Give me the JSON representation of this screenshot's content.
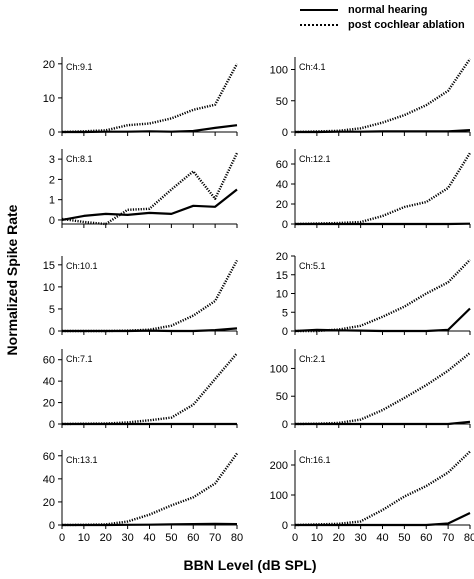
{
  "figure": {
    "xlabel": "BBN Level (dB SPL)",
    "ylabel": "Normalized Spike Rate"
  },
  "legend": {
    "placement": "top-right",
    "entries": [
      {
        "label": "normal hearing",
        "style": "solid"
      },
      {
        "label": "post cochlear ablation",
        "style": "dotted"
      }
    ]
  },
  "colors": {
    "normal": "#000000",
    "ablation": "#000000"
  },
  "chart_data": [
    {
      "type": "line",
      "title": "Ch:9.1",
      "x": [
        0,
        10,
        20,
        30,
        40,
        50,
        60,
        70,
        80
      ],
      "xlim": [
        0,
        80
      ],
      "ylim": [
        0,
        22
      ],
      "yticks": [
        0,
        10,
        20
      ],
      "xticks": [],
      "series": [
        {
          "name": "normal hearing",
          "style": "solid",
          "values": [
            0,
            0,
            0.1,
            0.1,
            0.2,
            0.1,
            0.3,
            1.2,
            2
          ]
        },
        {
          "name": "post cochlear ablation",
          "style": "dotted",
          "values": [
            0,
            0.2,
            0.5,
            2,
            2.5,
            4,
            6.5,
            8,
            20
          ]
        }
      ]
    },
    {
      "type": "line",
      "title": "Ch:4.1",
      "x": [
        0,
        10,
        20,
        30,
        40,
        50,
        60,
        70,
        80
      ],
      "xlim": [
        0,
        80
      ],
      "ylim": [
        0,
        120
      ],
      "yticks": [
        0,
        50,
        100
      ],
      "xticks": [],
      "series": [
        {
          "name": "normal hearing",
          "style": "solid",
          "values": [
            0,
            0,
            0.5,
            0.5,
            1,
            1,
            1,
            1,
            3
          ]
        },
        {
          "name": "post cochlear ablation",
          "style": "dotted",
          "values": [
            0,
            1,
            2,
            6,
            15,
            27,
            43,
            66,
            117
          ]
        }
      ]
    },
    {
      "type": "line",
      "title": "Ch:8.1",
      "x": [
        0,
        10,
        20,
        30,
        40,
        50,
        60,
        70,
        80
      ],
      "xlim": [
        0,
        80
      ],
      "ylim": [
        -0.2,
        3.5
      ],
      "yticks": [
        0,
        1,
        2,
        3
      ],
      "xticks": [],
      "series": [
        {
          "name": "normal hearing",
          "style": "solid",
          "values": [
            0,
            0.2,
            0.3,
            0.25,
            0.35,
            0.3,
            0.7,
            0.65,
            1.5
          ]
        },
        {
          "name": "post cochlear ablation",
          "style": "dotted",
          "values": [
            0.05,
            -0.1,
            -0.2,
            0.5,
            0.55,
            1.5,
            2.4,
            1.05,
            3.3
          ]
        }
      ]
    },
    {
      "type": "line",
      "title": "Ch:12.1",
      "x": [
        0,
        10,
        20,
        30,
        40,
        50,
        60,
        70,
        80
      ],
      "xlim": [
        0,
        80
      ],
      "ylim": [
        0,
        75
      ],
      "yticks": [
        0,
        20,
        40,
        60
      ],
      "xticks": [],
      "series": [
        {
          "name": "normal hearing",
          "style": "solid",
          "values": [
            0,
            0,
            0,
            0,
            0,
            0,
            0,
            0,
            0.3
          ]
        },
        {
          "name": "post cochlear ablation",
          "style": "dotted",
          "values": [
            0,
            0.5,
            1,
            2,
            8,
            17,
            22,
            36,
            71
          ]
        }
      ]
    },
    {
      "type": "line",
      "title": "Ch:10.1",
      "x": [
        0,
        10,
        20,
        30,
        40,
        50,
        60,
        70,
        80
      ],
      "xlim": [
        0,
        80
      ],
      "ylim": [
        0,
        17
      ],
      "yticks": [
        0,
        5,
        10,
        15
      ],
      "xticks": [],
      "series": [
        {
          "name": "normal hearing",
          "style": "solid",
          "values": [
            0,
            0,
            0,
            0,
            0.1,
            0,
            0,
            0.2,
            0.6
          ]
        },
        {
          "name": "post cochlear ablation",
          "style": "dotted",
          "values": [
            0,
            0,
            0,
            0.1,
            0.3,
            1.2,
            3.5,
            6.8,
            16
          ]
        }
      ]
    },
    {
      "type": "line",
      "title": "Ch:5.1",
      "x": [
        0,
        10,
        20,
        30,
        40,
        50,
        60,
        70,
        80
      ],
      "xlim": [
        0,
        80
      ],
      "ylim": [
        0,
        20
      ],
      "yticks": [
        0,
        5,
        10,
        15,
        20
      ],
      "xticks": [],
      "series": [
        {
          "name": "normal hearing",
          "style": "solid",
          "values": [
            0,
            0.3,
            0.2,
            0.1,
            0,
            0,
            0,
            0.3,
            6
          ]
        },
        {
          "name": "post cochlear ablation",
          "style": "dotted",
          "values": [
            0,
            0,
            0.4,
            1.4,
            3.8,
            6.5,
            10,
            13,
            19
          ]
        }
      ]
    },
    {
      "type": "line",
      "title": "Ch:7.1",
      "x": [
        0,
        10,
        20,
        30,
        40,
        50,
        60,
        70,
        80
      ],
      "xlim": [
        0,
        80
      ],
      "ylim": [
        0,
        70
      ],
      "yticks": [
        0,
        20,
        40,
        60
      ],
      "xticks": [],
      "series": [
        {
          "name": "normal hearing",
          "style": "solid",
          "values": [
            0,
            0,
            0,
            0,
            0,
            0,
            0,
            0,
            0
          ]
        },
        {
          "name": "post cochlear ablation",
          "style": "dotted",
          "values": [
            0,
            0.3,
            0.5,
            1.5,
            3.5,
            6,
            18,
            42,
            66
          ]
        }
      ]
    },
    {
      "type": "line",
      "title": "Ch:2.1",
      "x": [
        0,
        10,
        20,
        30,
        40,
        50,
        60,
        70,
        80
      ],
      "xlim": [
        0,
        80
      ],
      "ylim": [
        0,
        135
      ],
      "yticks": [
        0,
        50,
        100
      ],
      "xticks": [],
      "series": [
        {
          "name": "normal hearing",
          "style": "solid",
          "values": [
            0,
            0,
            0,
            0,
            0,
            0,
            0,
            0,
            4
          ]
        },
        {
          "name": "post cochlear ablation",
          "style": "dotted",
          "values": [
            0,
            0.5,
            2,
            8,
            25,
            47,
            70,
            96,
            128
          ]
        }
      ]
    },
    {
      "type": "line",
      "title": "Ch:13.1",
      "x": [
        0,
        10,
        20,
        30,
        40,
        50,
        60,
        70,
        80
      ],
      "xlim": [
        0,
        80
      ],
      "ylim": [
        0,
        65
      ],
      "yticks": [
        0,
        20,
        40,
        60
      ],
      "xticks": [
        0,
        10,
        20,
        30,
        40,
        50,
        60,
        70,
        80
      ],
      "series": [
        {
          "name": "normal hearing",
          "style": "solid",
          "values": [
            0,
            0,
            0,
            0.2,
            0.3,
            0.5,
            0.8,
            1,
            0.8
          ]
        },
        {
          "name": "post cochlear ablation",
          "style": "dotted",
          "values": [
            0,
            0.2,
            0.5,
            3,
            9,
            17,
            24,
            36,
            62
          ]
        }
      ]
    },
    {
      "type": "line",
      "title": "Ch:16.1",
      "x": [
        0,
        10,
        20,
        30,
        40,
        50,
        60,
        70,
        80
      ],
      "xlim": [
        0,
        80
      ],
      "ylim": [
        0,
        250
      ],
      "yticks": [
        0,
        100,
        200
      ],
      "xticks": [
        0,
        10,
        20,
        30,
        40,
        50,
        60,
        70,
        80
      ],
      "series": [
        {
          "name": "normal hearing",
          "style": "solid",
          "values": [
            0,
            0,
            0,
            0,
            0,
            0,
            0,
            5,
            40
          ]
        },
        {
          "name": "post cochlear ablation",
          "style": "dotted",
          "values": [
            0,
            2,
            4,
            12,
            50,
            95,
            130,
            175,
            245
          ]
        }
      ]
    }
  ]
}
